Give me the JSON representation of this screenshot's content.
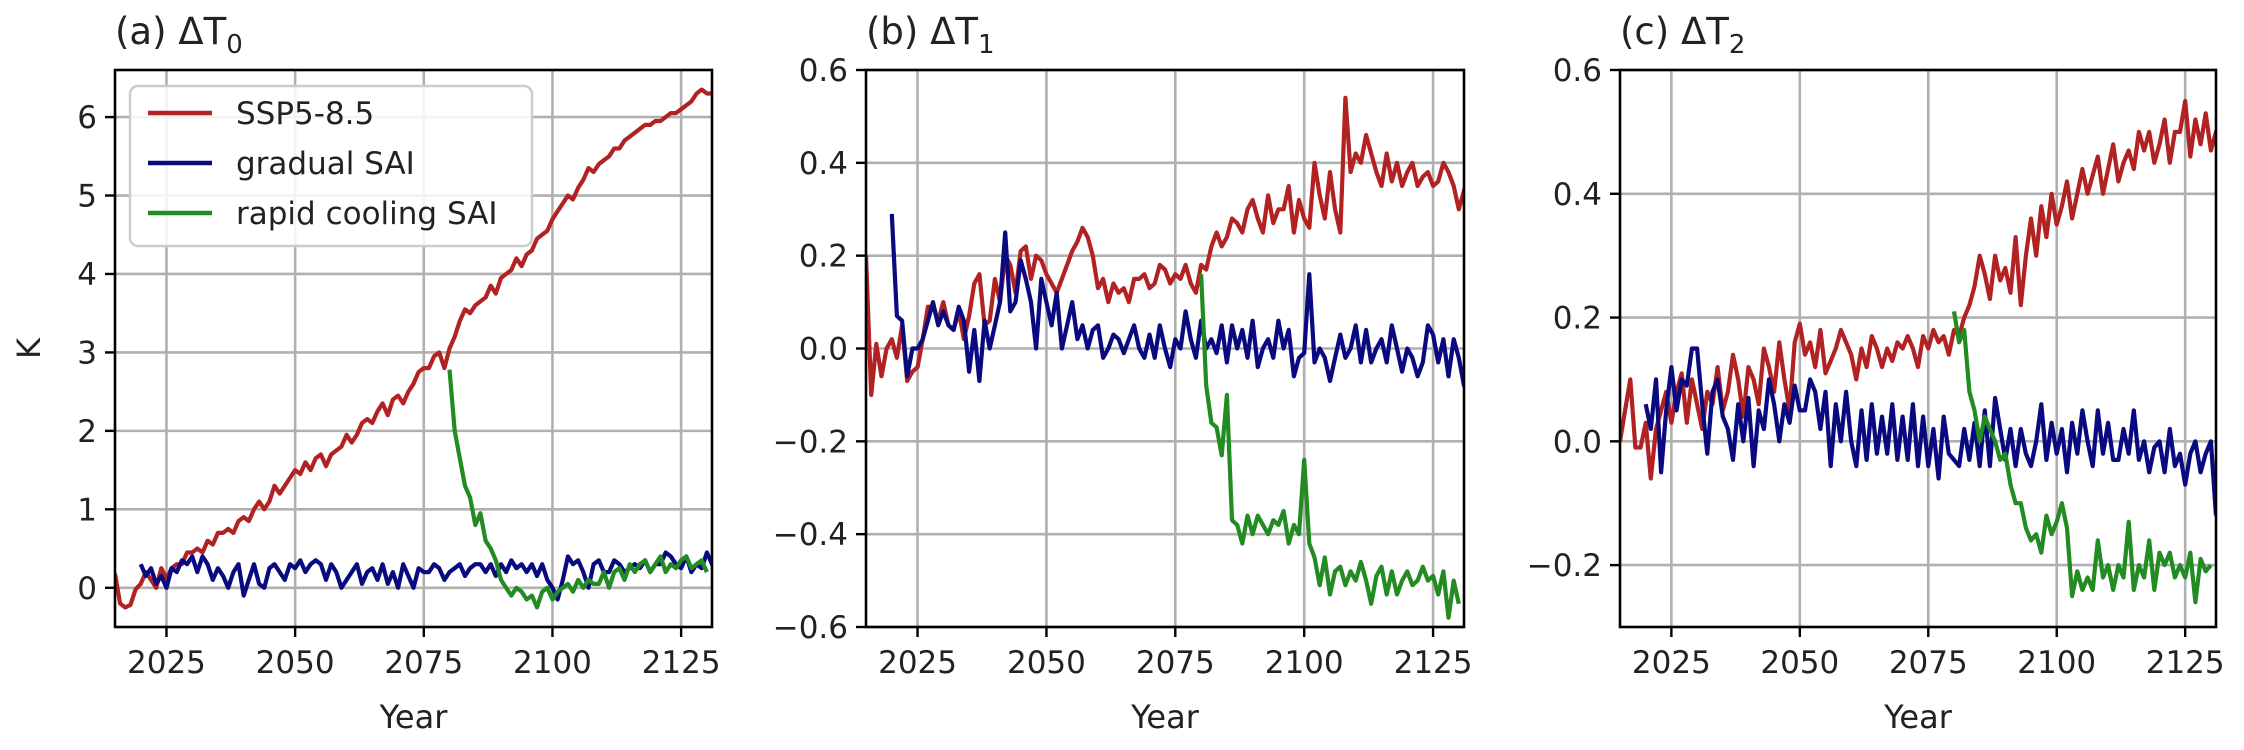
{
  "figure": {
    "ylabel": "K",
    "legend": {
      "placement": "upper-left of panel (a)",
      "entries": [
        {
          "label": "SSP5-8.5",
          "color": "#b22222"
        },
        {
          "label": "gradual SAI",
          "color": "#0a0a80"
        },
        {
          "label": "rapid cooling SAI",
          "color": "#228b22"
        }
      ]
    }
  },
  "chart_data": [
    {
      "type": "line",
      "title": "(a) ΔT₀",
      "title_main": "(a) ΔT",
      "title_sub": "0",
      "xlabel": "Year",
      "ylabel": "K",
      "xlim": [
        2015,
        2131
      ],
      "ylim": [
        -0.5,
        6.6
      ],
      "xticks": [
        2025,
        2050,
        2075,
        2100,
        2125
      ],
      "yticks": [
        0,
        1,
        2,
        3,
        4,
        5,
        6
      ],
      "ytick_labels": [
        "0",
        "1",
        "2",
        "3",
        "4",
        "5",
        "6"
      ],
      "grid": true,
      "series": [
        {
          "name": "SSP5-8.5",
          "color": "#b22222",
          "x_start": 2015,
          "values": [
            0.18,
            -0.2,
            -0.25,
            -0.22,
            -0.02,
            0.05,
            0.2,
            0.1,
            0.0,
            0.25,
            0.12,
            0.25,
            0.3,
            0.3,
            0.45,
            0.45,
            0.5,
            0.45,
            0.6,
            0.55,
            0.7,
            0.7,
            0.75,
            0.7,
            0.85,
            0.9,
            0.85,
            1.0,
            1.1,
            1.0,
            1.1,
            1.3,
            1.2,
            1.3,
            1.4,
            1.5,
            1.45,
            1.6,
            1.5,
            1.65,
            1.7,
            1.55,
            1.7,
            1.75,
            1.8,
            1.95,
            1.85,
            1.95,
            2.1,
            2.15,
            2.1,
            2.25,
            2.35,
            2.2,
            2.4,
            2.45,
            2.35,
            2.5,
            2.6,
            2.75,
            2.8,
            2.8,
            2.95,
            3.0,
            2.8,
            3.05,
            3.2,
            3.4,
            3.55,
            3.5,
            3.6,
            3.65,
            3.7,
            3.85,
            3.75,
            3.95,
            4.0,
            4.05,
            4.2,
            4.1,
            4.25,
            4.3,
            4.45,
            4.5,
            4.55,
            4.7,
            4.8,
            4.9,
            5.0,
            4.95,
            5.1,
            5.2,
            5.35,
            5.3,
            5.4,
            5.45,
            5.5,
            5.6,
            5.6,
            5.7,
            5.75,
            5.8,
            5.85,
            5.9,
            5.9,
            5.95,
            5.95,
            6.0,
            6.05,
            6.05,
            6.1,
            6.15,
            6.2,
            6.3,
            6.35,
            6.3,
            6.3
          ]
        },
        {
          "name": "gradual SAI",
          "color": "#0a0a80",
          "x_start": 2020,
          "values": [
            0.3,
            0.15,
            0.25,
            0.05,
            0.15,
            0.0,
            0.25,
            0.2,
            0.35,
            0.3,
            0.4,
            0.2,
            0.4,
            0.3,
            0.1,
            0.25,
            0.15,
            0.0,
            0.2,
            0.3,
            -0.1,
            0.1,
            0.3,
            0.05,
            0.0,
            0.25,
            0.3,
            0.2,
            0.1,
            0.3,
            0.25,
            0.35,
            0.2,
            0.3,
            0.35,
            0.3,
            0.1,
            0.3,
            0.2,
            0.0,
            0.1,
            0.2,
            0.3,
            0.05,
            0.2,
            0.25,
            0.1,
            0.3,
            0.05,
            0.2,
            0.0,
            0.3,
            0.15,
            0.0,
            0.25,
            0.2,
            0.2,
            0.3,
            0.25,
            0.1,
            0.2,
            0.25,
            0.3,
            0.15,
            0.25,
            0.3,
            0.3,
            0.2,
            0.3,
            0.15,
            0.3,
            0.2,
            0.35,
            0.25,
            0.3,
            0.2,
            0.3,
            0.15,
            0.3,
            0.1,
            0.0,
            -0.15,
            0.1,
            0.4,
            0.3,
            0.35,
            0.2,
            0.0,
            0.3,
            0.35,
            0.2,
            0.2,
            0.35,
            0.3,
            0.2,
            0.25,
            0.3,
            0.25,
            0.35,
            0.2,
            0.3,
            0.3,
            0.45,
            0.4,
            0.3,
            0.25,
            0.4,
            0.2,
            0.3,
            0.25,
            0.45,
            0.3,
            0.2
          ]
        },
        {
          "name": "rapid cooling SAI",
          "color": "#228b22",
          "x_start": 2080,
          "values": [
            2.78,
            2.0,
            1.65,
            1.3,
            1.15,
            0.8,
            0.95,
            0.6,
            0.5,
            0.35,
            0.1,
            0.0,
            -0.1,
            0.0,
            -0.05,
            -0.15,
            -0.1,
            -0.25,
            -0.05,
            0.0,
            -0.15,
            -0.05,
            0.0,
            0.05,
            -0.05,
            0.1,
            0.0,
            0.1,
            0.05,
            0.05,
            0.2,
            0.0,
            0.2,
            0.25,
            0.1,
            0.3,
            0.2,
            0.3,
            0.35,
            0.2,
            0.3,
            0.4,
            0.2,
            0.3,
            0.25,
            0.35,
            0.4,
            0.25,
            0.3,
            0.35,
            0.2
          ]
        }
      ]
    },
    {
      "type": "line",
      "title": "(b) ΔT₁",
      "title_main": "(b) ΔT",
      "title_sub": "1",
      "xlabel": "Year",
      "ylabel": "",
      "xlim": [
        2015,
        2131
      ],
      "ylim": [
        -0.6,
        0.6
      ],
      "xticks": [
        2025,
        2050,
        2075,
        2100,
        2125
      ],
      "yticks": [
        -0.6,
        -0.4,
        -0.2,
        0.0,
        0.2,
        0.4,
        0.6
      ],
      "ytick_labels": [
        "−0.6",
        "−0.4",
        "−0.2",
        "0.0",
        "0.2",
        "0.4",
        "0.6"
      ],
      "grid": true,
      "series": [
        {
          "name": "SSP5-8.5",
          "color": "#b22222",
          "x_start": 2015,
          "values": [
            0.2,
            -0.1,
            0.01,
            -0.06,
            0.0,
            0.02,
            -0.02,
            0.05,
            -0.07,
            -0.05,
            -0.04,
            0.02,
            0.09,
            0.09,
            0.06,
            0.1,
            0.05,
            0.04,
            0.08,
            0.02,
            0.07,
            0.14,
            0.16,
            0.05,
            0.06,
            0.15,
            0.1,
            0.2,
            0.18,
            0.12,
            0.21,
            0.22,
            0.15,
            0.2,
            0.19,
            0.16,
            0.14,
            0.12,
            0.15,
            0.18,
            0.21,
            0.23,
            0.26,
            0.24,
            0.2,
            0.13,
            0.15,
            0.1,
            0.14,
            0.12,
            0.13,
            0.1,
            0.15,
            0.15,
            0.16,
            0.13,
            0.14,
            0.18,
            0.17,
            0.14,
            0.16,
            0.15,
            0.18,
            0.14,
            0.12,
            0.18,
            0.17,
            0.22,
            0.25,
            0.22,
            0.24,
            0.28,
            0.27,
            0.25,
            0.3,
            0.32,
            0.28,
            0.25,
            0.33,
            0.27,
            0.3,
            0.3,
            0.35,
            0.25,
            0.32,
            0.28,
            0.26,
            0.4,
            0.33,
            0.28,
            0.38,
            0.3,
            0.25,
            0.54,
            0.38,
            0.42,
            0.4,
            0.46,
            0.42,
            0.38,
            0.35,
            0.42,
            0.36,
            0.4,
            0.35,
            0.38,
            0.4,
            0.35,
            0.37,
            0.38,
            0.35,
            0.36,
            0.4,
            0.38,
            0.35,
            0.3,
            0.34,
            0.38,
            0.34,
            0.4,
            0.36
          ]
        },
        {
          "name": "gradual SAI",
          "color": "#0a0a80",
          "x_start": 2020,
          "values": [
            0.29,
            0.07,
            0.06,
            -0.06,
            0.0,
            0.0,
            0.02,
            0.06,
            0.1,
            0.05,
            0.08,
            0.05,
            0.04,
            0.09,
            0.06,
            -0.05,
            0.04,
            -0.07,
            0.06,
            0.0,
            0.05,
            0.1,
            0.25,
            0.08,
            0.1,
            0.19,
            0.15,
            0.1,
            0.0,
            0.15,
            0.1,
            0.05,
            0.12,
            0.0,
            0.05,
            0.1,
            0.02,
            0.05,
            0.0,
            0.04,
            0.05,
            -0.02,
            0.0,
            0.03,
            0.02,
            -0.01,
            0.02,
            0.05,
            0.0,
            -0.02,
            0.03,
            -0.02,
            0.05,
            0.0,
            -0.04,
            0.02,
            0.0,
            0.08,
            0.02,
            -0.02,
            0.06,
            0.0,
            0.02,
            -0.01,
            0.05,
            -0.03,
            0.05,
            0.0,
            0.04,
            -0.02,
            0.06,
            -0.04,
            0.0,
            0.02,
            -0.02,
            0.06,
            0.0,
            0.04,
            -0.06,
            -0.02,
            -0.01,
            0.16,
            -0.03,
            0.0,
            -0.02,
            -0.07,
            -0.02,
            0.03,
            -0.02,
            0.0,
            0.05,
            -0.03,
            0.04,
            -0.03,
            0.0,
            0.02,
            -0.03,
            0.05,
            0.0,
            -0.05,
            0.0,
            -0.02,
            -0.06,
            -0.03,
            0.05,
            0.03,
            -0.03,
            0.02,
            -0.06,
            0.02,
            -0.02,
            -0.08,
            0.02,
            0.02,
            -0.09
          ]
        },
        {
          "name": "rapid cooling SAI",
          "color": "#228b22",
          "x_start": 2080,
          "values": [
            0.16,
            -0.08,
            -0.16,
            -0.17,
            -0.23,
            -0.1,
            -0.37,
            -0.38,
            -0.42,
            -0.36,
            -0.4,
            -0.36,
            -0.38,
            -0.4,
            -0.37,
            -0.38,
            -0.35,
            -0.42,
            -0.38,
            -0.4,
            -0.24,
            -0.42,
            -0.45,
            -0.51,
            -0.45,
            -0.53,
            -0.48,
            -0.47,
            -0.51,
            -0.48,
            -0.5,
            -0.46,
            -0.5,
            -0.55,
            -0.49,
            -0.47,
            -0.53,
            -0.48,
            -0.53,
            -0.5,
            -0.48,
            -0.51,
            -0.5,
            -0.47,
            -0.5,
            -0.49,
            -0.53,
            -0.48,
            -0.58,
            -0.5,
            -0.55
          ]
        }
      ]
    },
    {
      "type": "line",
      "title": "(c) ΔT₂",
      "title_main": "(c) ΔT",
      "title_sub": "2",
      "xlabel": "Year",
      "ylabel": "",
      "xlim": [
        2015,
        2131
      ],
      "ylim": [
        -0.3,
        0.6
      ],
      "xticks": [
        2025,
        2050,
        2075,
        2100,
        2125
      ],
      "yticks": [
        -0.2,
        0.0,
        0.2,
        0.4,
        0.6
      ],
      "ytick_labels": [
        "−0.2",
        "0.0",
        "0.2",
        "0.4",
        "0.6"
      ],
      "grid": true,
      "series": [
        {
          "name": "SSP5-8.5",
          "color": "#b22222",
          "x_start": 2015,
          "values": [
            0.0,
            0.05,
            0.1,
            -0.01,
            -0.01,
            0.03,
            -0.06,
            0.02,
            0.05,
            0.08,
            0.03,
            0.08,
            0.11,
            0.03,
            0.1,
            0.06,
            0.02,
            0.08,
            0.06,
            0.12,
            0.05,
            0.08,
            0.14,
            0.1,
            0.04,
            0.12,
            0.1,
            0.06,
            0.15,
            0.12,
            0.08,
            0.16,
            0.1,
            0.05,
            0.16,
            0.19,
            0.14,
            0.16,
            0.12,
            0.18,
            0.11,
            0.13,
            0.15,
            0.18,
            0.16,
            0.14,
            0.1,
            0.15,
            0.12,
            0.17,
            0.15,
            0.12,
            0.15,
            0.13,
            0.16,
            0.15,
            0.17,
            0.15,
            0.12,
            0.17,
            0.15,
            0.18,
            0.16,
            0.17,
            0.14,
            0.18,
            0.17,
            0.2,
            0.22,
            0.25,
            0.3,
            0.27,
            0.23,
            0.3,
            0.26,
            0.28,
            0.24,
            0.33,
            0.22,
            0.3,
            0.36,
            0.3,
            0.38,
            0.33,
            0.4,
            0.35,
            0.38,
            0.42,
            0.36,
            0.4,
            0.44,
            0.4,
            0.43,
            0.46,
            0.4,
            0.44,
            0.48,
            0.42,
            0.45,
            0.47,
            0.44,
            0.5,
            0.47,
            0.5,
            0.45,
            0.48,
            0.52,
            0.45,
            0.5,
            0.5,
            0.55,
            0.46,
            0.52,
            0.48,
            0.53,
            0.47,
            0.5,
            0.52,
            0.48,
            0.58,
            0.5
          ]
        },
        {
          "name": "gradual SAI",
          "color": "#0a0a80",
          "x_start": 2020,
          "values": [
            0.06,
            0.02,
            0.1,
            -0.05,
            0.05,
            0.12,
            0.05,
            0.1,
            0.09,
            0.15,
            0.15,
            0.06,
            -0.02,
            0.08,
            0.1,
            0.04,
            0.02,
            -0.03,
            0.06,
            0.0,
            0.07,
            -0.04,
            0.05,
            0.02,
            0.1,
            0.06,
            0.0,
            0.06,
            0.03,
            0.09,
            0.05,
            0.05,
            0.1,
            0.08,
            0.02,
            0.08,
            -0.04,
            0.06,
            0.0,
            0.08,
            0.0,
            -0.04,
            0.05,
            -0.03,
            0.06,
            -0.02,
            0.04,
            -0.02,
            0.06,
            -0.03,
            0.04,
            -0.03,
            0.06,
            -0.04,
            0.04,
            -0.04,
            0.02,
            -0.06,
            0.04,
            -0.02,
            -0.03,
            -0.04,
            0.02,
            -0.03,
            0.03,
            -0.04,
            0.05,
            -0.04,
            0.07,
            0.02,
            -0.03,
            0.02,
            -0.04,
            0.02,
            -0.02,
            -0.04,
            0.0,
            0.06,
            -0.03,
            0.03,
            -0.02,
            0.02,
            -0.05,
            0.03,
            -0.02,
            0.05,
            0.0,
            -0.04,
            0.05,
            -0.02,
            0.03,
            -0.03,
            -0.03,
            0.02,
            -0.02,
            0.05,
            -0.03,
            0.0,
            -0.05,
            -0.01,
            0.0,
            -0.05,
            0.02,
            -0.04,
            -0.02,
            -0.07,
            -0.02,
            0.0,
            -0.05,
            -0.02,
            0.0,
            -0.12
          ]
        },
        {
          "name": "rapid cooling SAI",
          "color": "#228b22",
          "x_start": 2080,
          "values": [
            0.21,
            0.16,
            0.18,
            0.08,
            0.05,
            0.0,
            0.04,
            0.02,
            0.0,
            -0.03,
            -0.02,
            -0.07,
            -0.1,
            -0.1,
            -0.14,
            -0.16,
            -0.15,
            -0.18,
            -0.12,
            -0.15,
            -0.13,
            -0.1,
            -0.14,
            -0.25,
            -0.21,
            -0.24,
            -0.22,
            -0.24,
            -0.16,
            -0.22,
            -0.2,
            -0.24,
            -0.2,
            -0.22,
            -0.13,
            -0.24,
            -0.2,
            -0.22,
            -0.16,
            -0.24,
            -0.18,
            -0.2,
            -0.18,
            -0.22,
            -0.2,
            -0.22,
            -0.18,
            -0.26,
            -0.19,
            -0.21,
            -0.2
          ]
        }
      ]
    }
  ]
}
